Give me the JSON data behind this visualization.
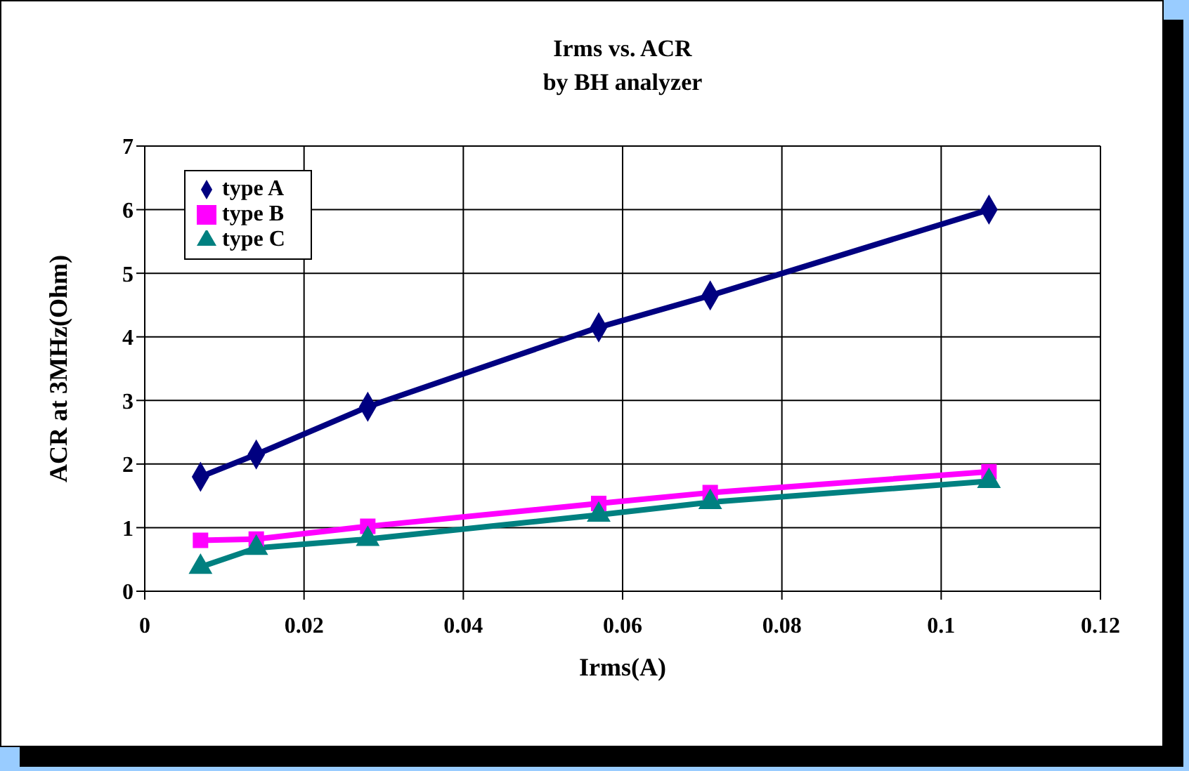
{
  "chart_data": {
    "type": "line",
    "title": "Irms vs. ACR",
    "subtitle": "by BH analyzer",
    "xlabel": "Irms(A)",
    "ylabel": "ACR at 3MHz(Ohm)",
    "x": [
      0.007,
      0.014,
      0.028,
      0.057,
      0.071,
      0.106
    ],
    "series": [
      {
        "name": "type A",
        "color": "#000080",
        "marker": "diamond",
        "values": [
          1.8,
          2.15,
          2.9,
          4.15,
          4.65,
          6.0
        ]
      },
      {
        "name": "type B",
        "color": "#ff00ff",
        "marker": "square",
        "values": [
          0.8,
          0.82,
          1.02,
          1.38,
          1.55,
          1.88
        ]
      },
      {
        "name": "type C",
        "color": "#008080",
        "marker": "triangle",
        "values": [
          0.38,
          0.68,
          0.82,
          1.2,
          1.4,
          1.73
        ]
      }
    ],
    "xlim": [
      0,
      0.12
    ],
    "xticks": [
      0,
      0.02,
      0.04,
      0.06,
      0.08,
      0.1,
      0.12
    ],
    "ylim": [
      0,
      7
    ],
    "yticks": [
      0,
      1,
      2,
      3,
      4,
      5,
      6,
      7
    ],
    "grid": true,
    "legend": "top left"
  }
}
